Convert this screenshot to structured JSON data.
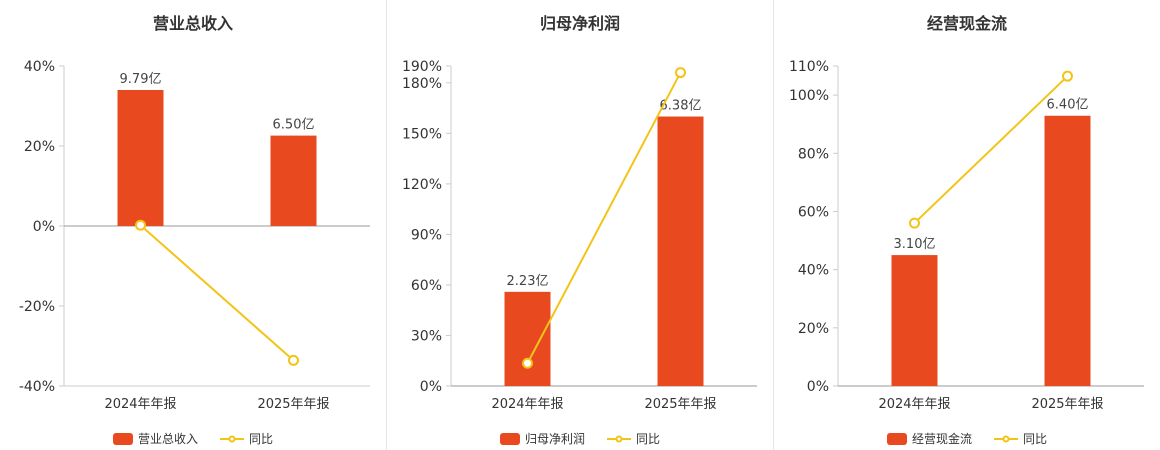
{
  "page": {
    "background": "#ffffff"
  },
  "colors": {
    "bar": "#e8491f",
    "line": "#f3c418",
    "marker_fill": "#ffffff",
    "axis": "#cccccc",
    "zero_line": "#999999",
    "tick_text": "#333333",
    "title_text": "#333333",
    "label_text": "#444444",
    "legend_text": "#333333",
    "divider": "#e6e6e6"
  },
  "chart_data": [
    {
      "type": "bar+line",
      "title": "营业总收入",
      "categories": [
        "2024年年报",
        "2025年年报"
      ],
      "series": [
        {
          "name": "营业总收入",
          "type": "bar",
          "data_labels": [
            "9.79亿",
            "6.50亿"
          ],
          "plotted_axis_values": [
            34.0,
            22.6
          ]
        },
        {
          "name": "同比",
          "type": "line",
          "values": [
            0.2,
            -33.6
          ]
        }
      ],
      "y_axis": {
        "min": -40,
        "max": 40,
        "ticks": [
          40,
          20,
          0,
          -20,
          -40
        ],
        "suffix": "%"
      },
      "legend_position": "bottom",
      "grid": false
    },
    {
      "type": "bar+line",
      "title": "归母净利润",
      "categories": [
        "2024年年报",
        "2025年年报"
      ],
      "series": [
        {
          "name": "归母净利润",
          "type": "bar",
          "data_labels": [
            "2.23亿",
            "6.38亿"
          ],
          "plotted_axis_values": [
            55.9,
            160.0
          ]
        },
        {
          "name": "同比",
          "type": "line",
          "values": [
            13.5,
            186.1
          ]
        }
      ],
      "y_axis": {
        "min": 0,
        "max": 190,
        "ticks": [
          190,
          180,
          150,
          120,
          90,
          60,
          30,
          0
        ],
        "suffix": "%"
      },
      "legend_position": "bottom",
      "grid": false
    },
    {
      "type": "bar+line",
      "title": "经营现金流",
      "categories": [
        "2024年年报",
        "2025年年报"
      ],
      "series": [
        {
          "name": "经营现金流",
          "type": "bar",
          "data_labels": [
            "3.10亿",
            "6.40亿"
          ],
          "plotted_axis_values": [
            45.0,
            92.9
          ]
        },
        {
          "name": "同比",
          "type": "line",
          "values": [
            56.0,
            106.5
          ]
        }
      ],
      "y_axis": {
        "min": 0,
        "max": 110,
        "ticks": [
          110,
          100,
          80,
          60,
          40,
          20,
          0
        ],
        "suffix": "%"
      },
      "legend_position": "bottom",
      "grid": false
    }
  ]
}
